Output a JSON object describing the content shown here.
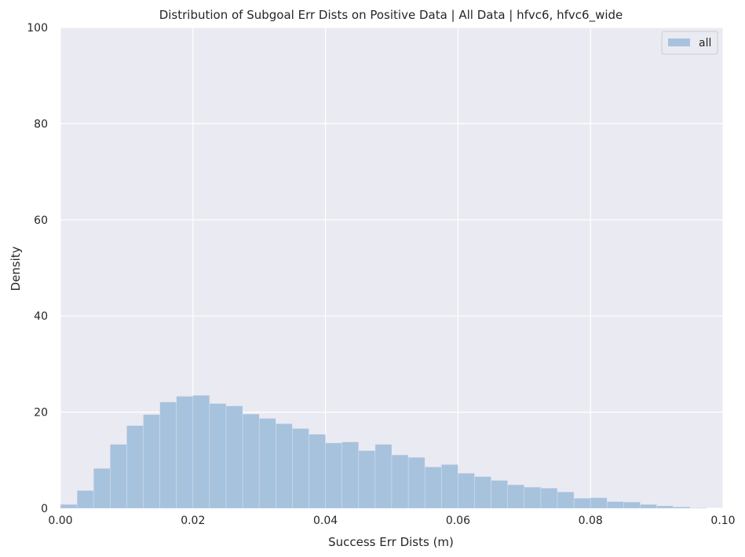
{
  "chart_data": {
    "type": "bar",
    "title": "Distribution of Subgoal Err Dists on Positive Data | All Data | hfvc6, hfvc6_wide",
    "xlabel": "Success Err Dists (m)",
    "ylabel": "Density",
    "xlim": [
      0.0,
      0.1
    ],
    "ylim": [
      0,
      100
    ],
    "xticks": [
      "0.00",
      "0.02",
      "0.04",
      "0.06",
      "0.08",
      "0.10"
    ],
    "yticks": [
      "0",
      "20",
      "40",
      "60",
      "80",
      "100"
    ],
    "grid": true,
    "legend_position": "top-right",
    "bar_color": "#a7c2dd",
    "background_color": "#eaeaf2",
    "bin_start": 0.0,
    "bin_width": 0.0025,
    "series": [
      {
        "name": "all",
        "values": [
          0.8,
          3.7,
          8.3,
          13.3,
          17.2,
          19.5,
          22.1,
          23.3,
          23.5,
          21.8,
          21.3,
          19.6,
          18.7,
          17.6,
          16.6,
          15.4,
          13.6,
          13.8,
          12.0,
          13.3,
          11.1,
          10.6,
          8.6,
          9.1,
          7.3,
          6.6,
          5.8,
          4.9,
          4.4,
          4.2,
          3.4,
          2.1,
          2.2,
          1.4,
          1.3,
          0.8,
          0.5,
          0.3,
          0.1
        ]
      }
    ]
  }
}
